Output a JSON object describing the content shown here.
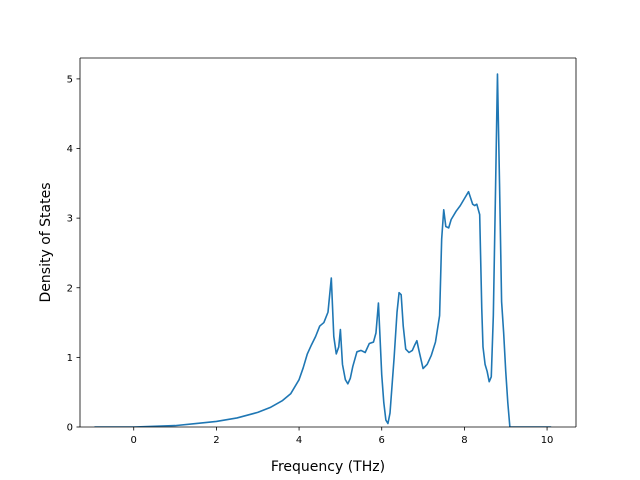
{
  "chart_data": {
    "type": "line",
    "title": "",
    "xlabel": "Frequency (THz)",
    "ylabel": "Density of States",
    "xlim": [
      -1.3,
      10.7
    ],
    "ylim": [
      0,
      5.3
    ],
    "x_ticks": [
      0,
      2,
      4,
      6,
      8,
      10
    ],
    "y_ticks": [
      0,
      1,
      2,
      3,
      4,
      5
    ],
    "grid": false,
    "legend": "none",
    "series": [
      {
        "color": "#1f77b4",
        "x": [
          -0.95,
          0.0,
          0.5,
          1.0,
          1.5,
          2.0,
          2.5,
          3.0,
          3.3,
          3.6,
          3.8,
          4.0,
          4.1,
          4.2,
          4.3,
          4.4,
          4.5,
          4.6,
          4.7,
          4.78,
          4.84,
          4.9,
          4.96,
          5.0,
          5.05,
          5.12,
          5.18,
          5.24,
          5.3,
          5.4,
          5.5,
          5.6,
          5.7,
          5.8,
          5.86,
          5.92,
          5.95,
          6.0,
          6.05,
          6.1,
          6.15,
          6.2,
          6.3,
          6.37,
          6.42,
          6.47,
          6.52,
          6.58,
          6.66,
          6.74,
          6.8,
          6.85,
          6.9,
          7.0,
          7.1,
          7.2,
          7.3,
          7.4,
          7.45,
          7.5,
          7.55,
          7.62,
          7.68,
          7.72,
          7.8,
          7.9,
          8.0,
          8.1,
          8.2,
          8.25,
          8.3,
          8.37,
          8.42,
          8.45,
          8.5,
          8.55,
          8.6,
          8.65,
          8.7,
          8.75,
          8.8,
          8.85,
          8.9,
          8.95,
          9.0,
          9.05,
          9.1,
          9.15,
          9.2,
          9.25,
          9.3,
          9.4,
          9.6,
          10.1
        ],
        "y": [
          0.0,
          0.0,
          0.01,
          0.02,
          0.05,
          0.08,
          0.13,
          0.21,
          0.28,
          0.38,
          0.48,
          0.68,
          0.85,
          1.05,
          1.18,
          1.3,
          1.45,
          1.5,
          1.65,
          2.14,
          1.3,
          1.05,
          1.15,
          1.4,
          0.9,
          0.68,
          0.62,
          0.7,
          0.87,
          1.08,
          1.1,
          1.07,
          1.2,
          1.22,
          1.35,
          1.78,
          1.4,
          0.75,
          0.35,
          0.1,
          0.05,
          0.2,
          1.0,
          1.65,
          1.93,
          1.9,
          1.45,
          1.12,
          1.07,
          1.1,
          1.18,
          1.24,
          1.1,
          0.84,
          0.9,
          1.03,
          1.22,
          1.6,
          2.7,
          3.12,
          2.88,
          2.86,
          2.98,
          3.02,
          3.1,
          3.18,
          3.28,
          3.38,
          3.2,
          3.18,
          3.2,
          3.05,
          1.7,
          1.15,
          0.9,
          0.8,
          0.65,
          0.72,
          1.6,
          3.3,
          5.07,
          3.5,
          1.8,
          1.35,
          0.8,
          0.35,
          0.0,
          0.0,
          0.0,
          0.0,
          0.0,
          0.0,
          0.0,
          0.0
        ]
      }
    ]
  }
}
